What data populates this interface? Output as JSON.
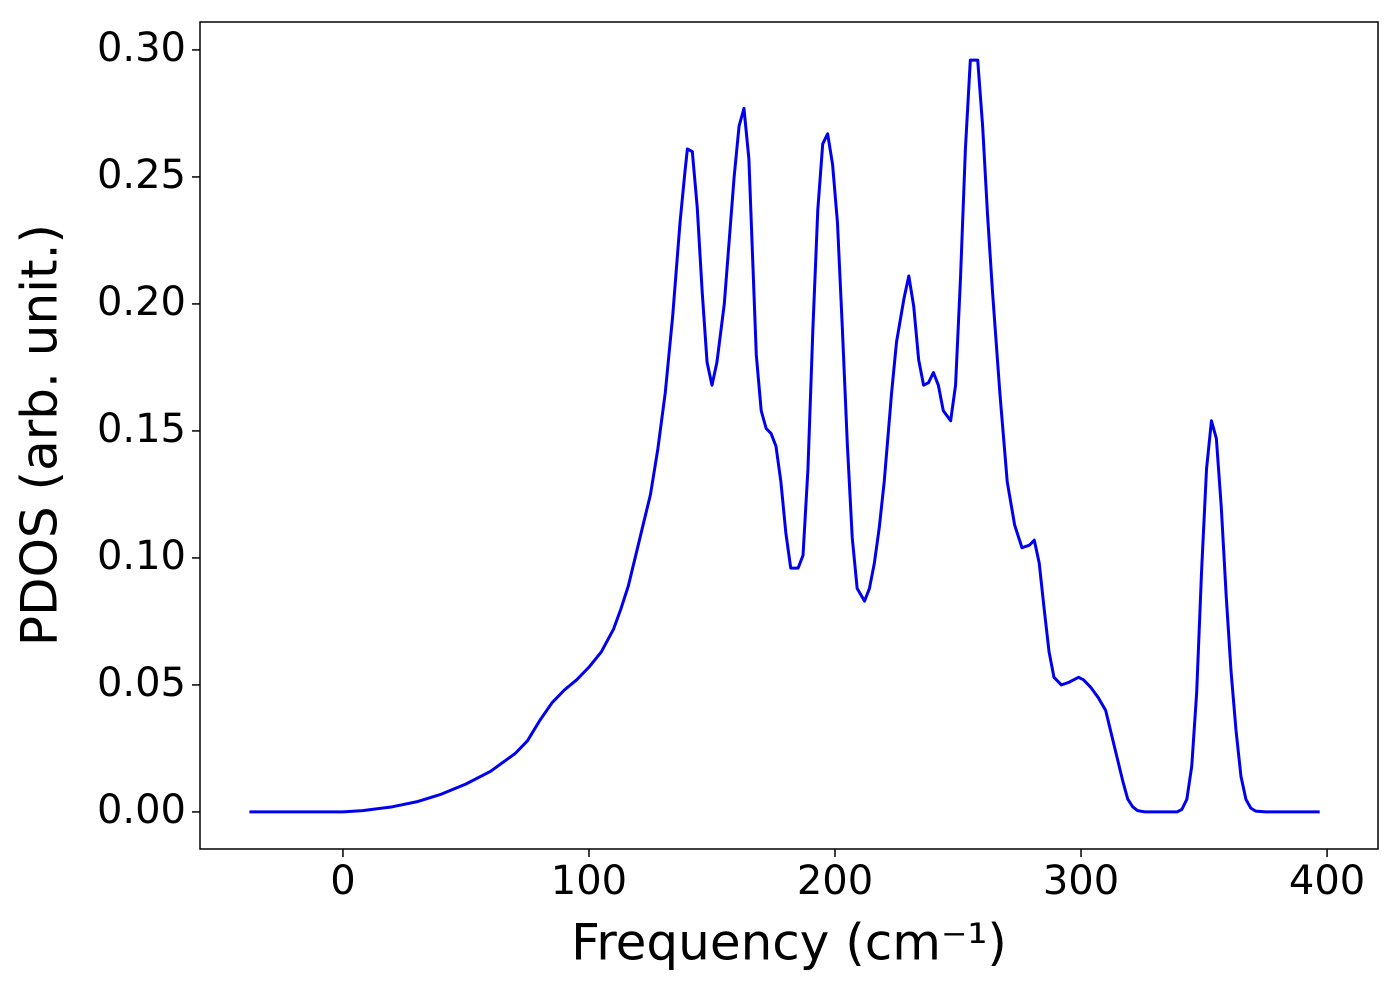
{
  "chart_data": {
    "type": "line",
    "xlabel": "Frequency (cm⁻¹)",
    "ylabel": "PDOS (arb. unit.)",
    "xlim": [
      -58.1,
      420.7
    ],
    "ylim": [
      -0.0146,
      0.311
    ],
    "xticks": [
      0,
      100,
      200,
      300,
      400
    ],
    "yticks": [
      {
        "value": 0,
        "label": "0.00"
      },
      {
        "value": 0.05,
        "label": "0.05"
      },
      {
        "value": 0.1,
        "label": "0.10"
      },
      {
        "value": 0.15,
        "label": "0.15"
      },
      {
        "value": 0.2,
        "label": "0.20"
      },
      {
        "value": 0.25,
        "label": "0.25"
      },
      {
        "value": 0.3,
        "label": "0.30"
      }
    ],
    "grid": false,
    "x": [
      -38,
      0,
      8,
      20,
      30,
      40,
      50,
      60,
      70,
      75,
      80,
      85,
      90,
      95,
      100,
      105,
      110,
      113,
      116,
      118,
      120,
      122,
      125,
      128,
      131,
      134,
      137,
      139,
      140,
      142,
      144,
      146,
      148,
      150,
      152,
      155,
      157,
      159,
      161,
      163,
      165,
      168,
      170,
      172,
      174,
      176,
      178,
      180,
      182,
      185,
      187,
      189,
      191,
      193,
      195,
      197,
      199,
      201,
      203,
      205,
      207,
      209,
      212,
      214,
      216,
      218,
      220,
      223,
      225,
      228,
      230,
      232,
      234,
      236,
      238,
      240,
      242,
      244,
      247,
      249,
      251,
      253,
      255,
      258,
      260,
      262,
      264,
      267,
      270,
      273,
      276,
      279,
      281,
      283,
      285,
      287,
      289,
      292,
      295,
      297,
      299,
      301,
      304,
      307,
      310,
      312,
      315,
      317,
      319,
      321,
      323,
      326,
      339,
      341,
      343,
      345,
      347,
      349,
      351,
      353,
      355,
      357,
      359,
      361,
      363,
      365,
      367,
      369,
      371,
      375,
      397
    ],
    "series": [
      {
        "name": "PDOS",
        "color": "#0000ee",
        "values": [
          0,
          0,
          0.0005,
          0.002,
          0.004,
          0.007,
          0.011,
          0.016,
          0.023,
          0.028,
          0.036,
          0.043,
          0.048,
          0.052,
          0.057,
          0.063,
          0.072,
          0.08,
          0.089,
          0.097,
          0.105,
          0.113,
          0.125,
          0.143,
          0.165,
          0.195,
          0.232,
          0.252,
          0.261,
          0.26,
          0.238,
          0.205,
          0.177,
          0.168,
          0.177,
          0.2,
          0.225,
          0.25,
          0.27,
          0.277,
          0.257,
          0.18,
          0.158,
          0.151,
          0.149,
          0.144,
          0.13,
          0.11,
          0.096,
          0.096,
          0.101,
          0.135,
          0.19,
          0.237,
          0.263,
          0.267,
          0.255,
          0.232,
          0.19,
          0.145,
          0.108,
          0.088,
          0.083,
          0.088,
          0.098,
          0.112,
          0.13,
          0.165,
          0.185,
          0.202,
          0.211,
          0.199,
          0.178,
          0.168,
          0.169,
          0.173,
          0.168,
          0.158,
          0.154,
          0.168,
          0.21,
          0.261,
          0.296,
          0.296,
          0.27,
          0.235,
          0.205,
          0.165,
          0.13,
          0.113,
          0.104,
          0.105,
          0.107,
          0.098,
          0.08,
          0.063,
          0.053,
          0.05,
          0.051,
          0.052,
          0.053,
          0.052,
          0.049,
          0.045,
          0.04,
          0.032,
          0.02,
          0.012,
          0.005,
          0.002,
          0.0005,
          0,
          0,
          0.001,
          0.005,
          0.018,
          0.047,
          0.095,
          0.135,
          0.154,
          0.147,
          0.12,
          0.085,
          0.055,
          0.032,
          0.014,
          0.005,
          0.0015,
          0.0003,
          0,
          0
        ]
      }
    ]
  }
}
